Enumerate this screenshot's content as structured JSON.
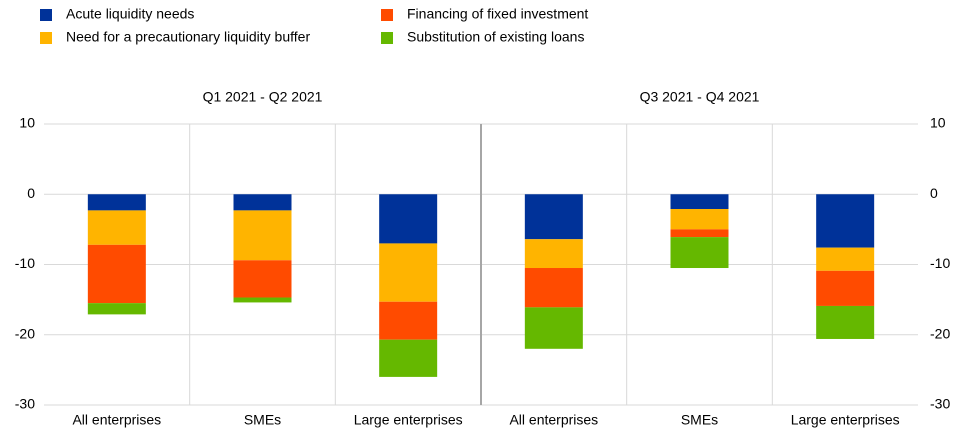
{
  "chart_data": {
    "type": "bar",
    "stacked": true,
    "grid": true,
    "panels": [
      {
        "title": "Q1 2021 - Q2 2021"
      },
      {
        "title": "Q3 2021 - Q4 2021"
      }
    ],
    "categories": [
      "All enterprises",
      "SMEs",
      "Large enterprises",
      "All enterprises",
      "SMEs",
      "Large enterprises"
    ],
    "series": [
      {
        "name": "Acute liquidity needs",
        "color": "#003299",
        "values": [
          -2.3,
          -2.3,
          -7.0,
          -6.4,
          -2.1,
          -7.6
        ]
      },
      {
        "name": "Need for a precautionary liquidity buffer",
        "color": "#ffb400",
        "values": [
          -4.9,
          -7.1,
          -8.3,
          -4.1,
          -2.9,
          -3.3
        ]
      },
      {
        "name": "Financing of fixed investment",
        "color": "#ff4b00",
        "values": [
          -8.3,
          -5.3,
          -5.4,
          -5.6,
          -1.1,
          -5.0
        ]
      },
      {
        "name": "Substitution of existing loans",
        "color": "#65b800",
        "values": [
          -1.6,
          -0.7,
          -5.3,
          -5.9,
          -4.4,
          -4.7
        ]
      }
    ],
    "ylim": [
      -30,
      10
    ],
    "yticks": [
      10,
      0,
      -10,
      -20,
      -30
    ]
  }
}
